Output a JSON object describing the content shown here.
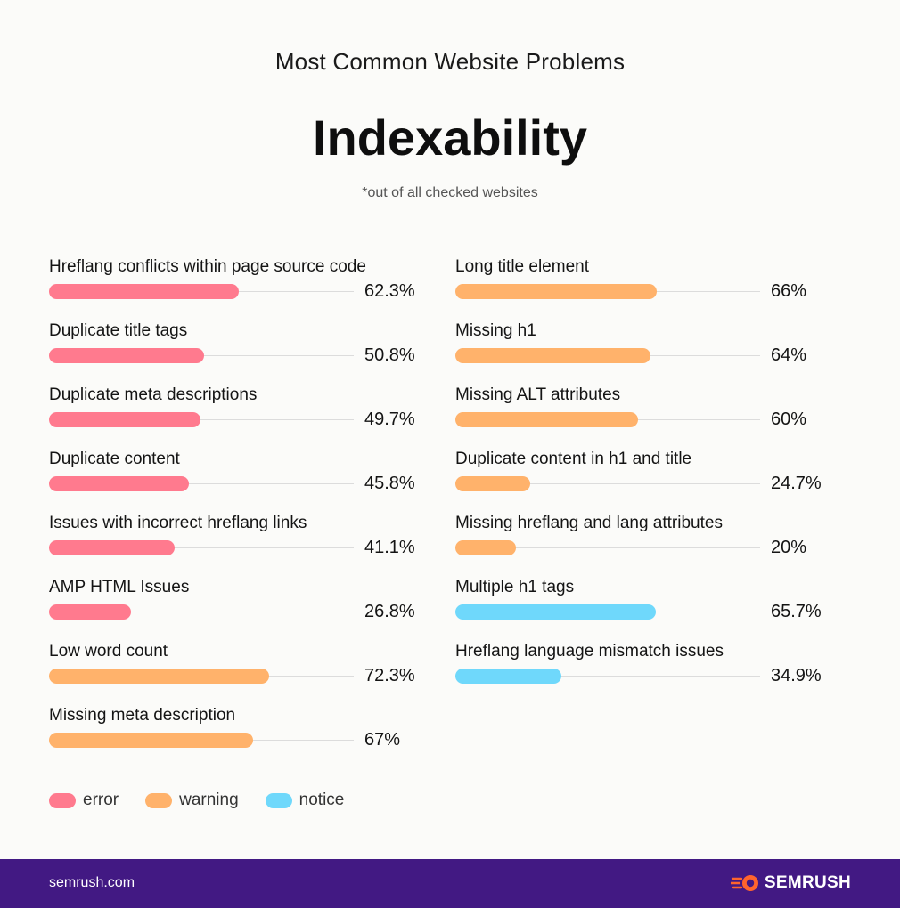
{
  "header": {
    "supertitle": "Most Common Website Problems",
    "title": "Indexability",
    "note": "*out of all checked websites"
  },
  "chart_data": {
    "type": "bar",
    "orientation": "horizontal",
    "xlim": [
      0,
      100
    ],
    "unit": "%",
    "colors": {
      "error": "#ff7a8e",
      "warning": "#ffb26b",
      "notice": "#6fd8fb"
    },
    "columns": [
      [
        {
          "label": "Hreflang conflicts within page source code",
          "value": 62.3,
          "value_label": "62.3%",
          "category": "error"
        },
        {
          "label": "Duplicate title tags",
          "value": 50.8,
          "value_label": "50.8%",
          "category": "error"
        },
        {
          "label": "Duplicate meta descriptions",
          "value": 49.7,
          "value_label": "49.7%",
          "category": "error"
        },
        {
          "label": "Duplicate content",
          "value": 45.8,
          "value_label": "45.8%",
          "category": "error"
        },
        {
          "label": "Issues with incorrect hreflang links",
          "value": 41.1,
          "value_label": "41.1%",
          "category": "error"
        },
        {
          "label": "AMP HTML Issues",
          "value": 26.8,
          "value_label": "26.8%",
          "category": "error"
        },
        {
          "label": "Low word count",
          "value": 72.3,
          "value_label": "72.3%",
          "category": "warning"
        },
        {
          "label": "Missing meta description",
          "value": 67,
          "value_label": "67%",
          "category": "warning"
        }
      ],
      [
        {
          "label": "Long title element",
          "value": 66,
          "value_label": "66%",
          "category": "warning"
        },
        {
          "label": "Missing h1",
          "value": 64,
          "value_label": "64%",
          "category": "warning"
        },
        {
          "label": "Missing ALT attributes",
          "value": 60,
          "value_label": "60%",
          "category": "warning"
        },
        {
          "label": "Duplicate content in h1 and title",
          "value": 24.7,
          "value_label": "24.7%",
          "category": "warning"
        },
        {
          "label": "Missing hreflang and lang attributes",
          "value": 20,
          "value_label": "20%",
          "category": "warning"
        },
        {
          "label": "Multiple h1 tags",
          "value": 65.7,
          "value_label": "65.7%",
          "category": "notice"
        },
        {
          "label": "Hreflang language mismatch issues",
          "value": 34.9,
          "value_label": "34.9%",
          "category": "notice"
        }
      ]
    ],
    "legend": [
      {
        "key": "error",
        "label": "error"
      },
      {
        "key": "warning",
        "label": "warning"
      },
      {
        "key": "notice",
        "label": "notice"
      }
    ],
    "legend_position": "bottom-left"
  },
  "footer": {
    "site": "semrush.com",
    "brand": "SEMRUSH",
    "brand_icon": "semrush-fire-icon",
    "brand_color": "#ff642d"
  }
}
